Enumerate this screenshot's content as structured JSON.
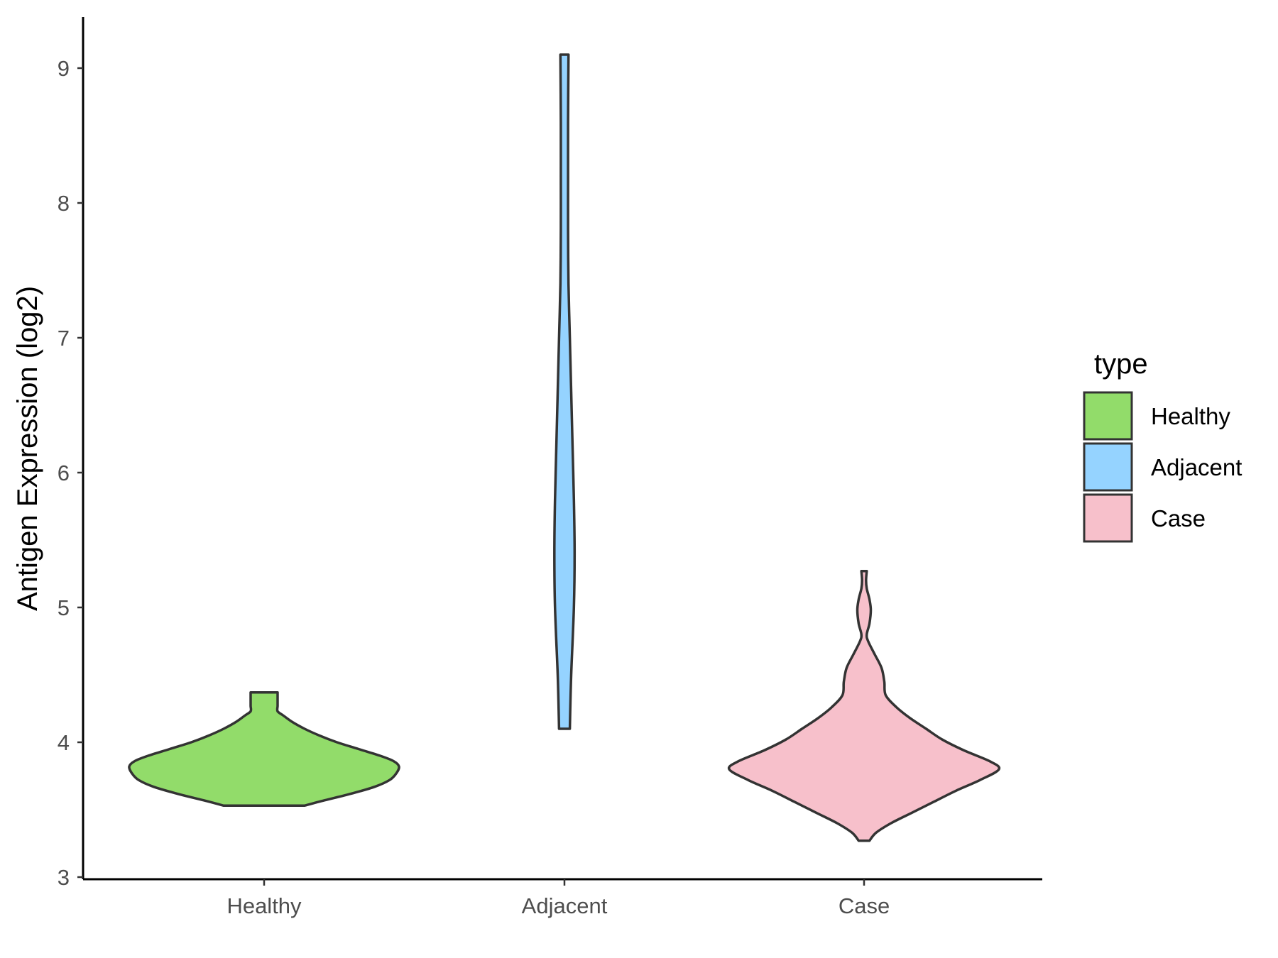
{
  "chart_data": {
    "type": "violin",
    "title": "",
    "xlabel": "",
    "ylabel": "Antigen Expression (log2)",
    "ylim": [
      3,
      9.4
    ],
    "yticks": [
      3,
      4,
      5,
      6,
      7,
      8,
      9
    ],
    "categories": [
      "Healthy",
      "Adjacent",
      "Case"
    ],
    "legend": {
      "title": "type",
      "position": "right",
      "entries": [
        {
          "label": "Healthy",
          "color": "#92DC6A"
        },
        {
          "label": "Adjacent",
          "color": "#95D3FF"
        },
        {
          "label": "Case",
          "color": "#F7C0CB"
        }
      ]
    },
    "series": [
      {
        "name": "Healthy",
        "color": "#92DC6A",
        "min": 3.53,
        "max": 4.37,
        "profile": [
          [
            3.53,
            0.3
          ],
          [
            3.57,
            0.45
          ],
          [
            3.62,
            0.65
          ],
          [
            3.67,
            0.82
          ],
          [
            3.72,
            0.93
          ],
          [
            3.77,
            0.98
          ],
          [
            3.82,
            1.0
          ],
          [
            3.86,
            0.96
          ],
          [
            3.9,
            0.86
          ],
          [
            3.95,
            0.7
          ],
          [
            4.0,
            0.54
          ],
          [
            4.05,
            0.41
          ],
          [
            4.1,
            0.3
          ],
          [
            4.15,
            0.21
          ],
          [
            4.2,
            0.14
          ],
          [
            4.23,
            0.1
          ],
          [
            4.27,
            0.1
          ],
          [
            4.32,
            0.1
          ],
          [
            4.37,
            0.1
          ]
        ]
      },
      {
        "name": "Adjacent",
        "color": "#95D3FF",
        "min": 4.1,
        "max": 9.1,
        "profile": [
          [
            4.1,
            0.04
          ],
          [
            4.5,
            0.05
          ],
          [
            5.0,
            0.07
          ],
          [
            5.4,
            0.075
          ],
          [
            5.8,
            0.07
          ],
          [
            6.2,
            0.06
          ],
          [
            6.6,
            0.05
          ],
          [
            7.0,
            0.04
          ],
          [
            7.4,
            0.03
          ],
          [
            7.8,
            0.027
          ],
          [
            8.2,
            0.027
          ],
          [
            8.6,
            0.027
          ],
          [
            9.1,
            0.03
          ]
        ]
      },
      {
        "name": "Case",
        "color": "#F7C0CB",
        "min": 3.27,
        "max": 5.27,
        "profile": [
          [
            3.27,
            0.04
          ],
          [
            3.33,
            0.09
          ],
          [
            3.4,
            0.2
          ],
          [
            3.48,
            0.36
          ],
          [
            3.56,
            0.52
          ],
          [
            3.64,
            0.68
          ],
          [
            3.72,
            0.86
          ],
          [
            3.8,
            1.0
          ],
          [
            3.86,
            0.93
          ],
          [
            3.94,
            0.74
          ],
          [
            4.02,
            0.58
          ],
          [
            4.1,
            0.46
          ],
          [
            4.18,
            0.34
          ],
          [
            4.26,
            0.24
          ],
          [
            4.35,
            0.16
          ],
          [
            4.45,
            0.15
          ],
          [
            4.55,
            0.13
          ],
          [
            4.65,
            0.08
          ],
          [
            4.75,
            0.03
          ],
          [
            4.8,
            0.02
          ],
          [
            4.88,
            0.04
          ],
          [
            4.98,
            0.05
          ],
          [
            5.06,
            0.04
          ],
          [
            5.14,
            0.02
          ],
          [
            5.2,
            0.015
          ],
          [
            5.27,
            0.02
          ]
        ]
      }
    ]
  }
}
